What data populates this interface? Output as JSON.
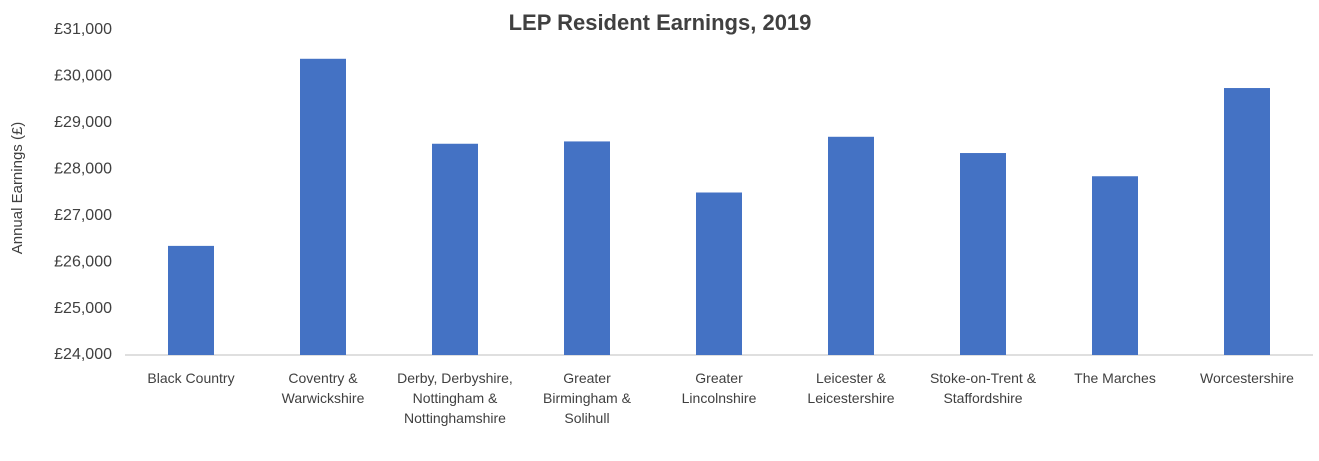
{
  "chart_data": {
    "type": "bar",
    "title": "LEP Resident Earnings, 2019",
    "y_label": "Annual Earnings (£)",
    "categories": [
      "Black Country",
      "Coventry & Warwickshire",
      "Derby, Derbyshire, Nottingham & Nottinghamshire",
      "Greater Birmingham & Solihull",
      "Greater Lincolnshire",
      "Leicester & Leicestershire",
      "Stoke-on-Trent & Staffordshire",
      "The Marches",
      "Worcestershire"
    ],
    "values": [
      26350,
      30380,
      28550,
      28600,
      27500,
      28700,
      28350,
      27850,
      29750
    ],
    "color": "#4472c4",
    "ylim": [
      24000,
      31000
    ],
    "yticks": [
      {
        "value": 24000,
        "label": "£24,000"
      },
      {
        "value": 25000,
        "label": "£25,000"
      },
      {
        "value": 26000,
        "label": "£26,000"
      },
      {
        "value": 27000,
        "label": "£27,000"
      },
      {
        "value": 28000,
        "label": "£28,000"
      },
      {
        "value": 29000,
        "label": "£29,000"
      },
      {
        "value": 30000,
        "label": "£30,000"
      },
      {
        "value": 31000,
        "label": "£31,000"
      }
    ],
    "grid": false
  }
}
